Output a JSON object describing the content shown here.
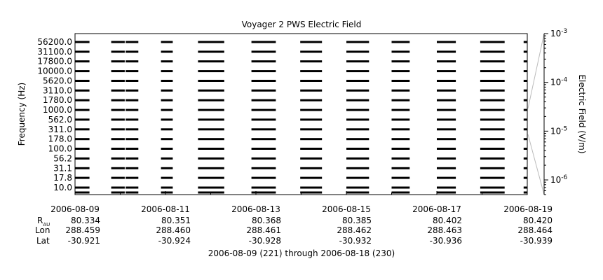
{
  "chart_data": {
    "type": "heatmap",
    "title": "Voyager 2 PWS Electric Field",
    "ylabel": "Frequency (Hz)",
    "colorbar_label": "Electric Field (V/m)",
    "xrange_days": [
      0,
      10
    ],
    "colorbar_range": [
      5e-07,
      0.001
    ],
    "y_ticks": [
      "56200.0",
      "31100.0",
      "17800.0",
      "10000.0",
      "5620.0",
      "3110.0",
      "1780.0",
      "1000.0",
      "562.0",
      "311.0",
      "178.0",
      "100.0",
      "56.2",
      "31.1",
      "17.8",
      "10.0"
    ],
    "x_ticks": [
      {
        "day": 0,
        "label": "2006-08-09"
      },
      {
        "day": 2,
        "label": "2006-08-11"
      },
      {
        "day": 4,
        "label": "2006-08-13"
      },
      {
        "day": 6,
        "label": "2006-08-15"
      },
      {
        "day": 8,
        "label": "2006-08-17"
      },
      {
        "day": 10,
        "label": "2006-08-19"
      }
    ],
    "ephemeris_row_labels": {
      "r": "R",
      "r_sub": "AU",
      "lon": "Lon",
      "lat": "Lat"
    },
    "ephemeris": [
      {
        "day": 0,
        "r": "80.334",
        "lon": "288.459",
        "lat": "-30.921"
      },
      {
        "day": 2,
        "r": "80.351",
        "lon": "288.460",
        "lat": "-30.924"
      },
      {
        "day": 4,
        "r": "80.368",
        "lon": "288.461",
        "lat": "-30.928"
      },
      {
        "day": 6,
        "r": "80.385",
        "lon": "288.462",
        "lat": "-30.932"
      },
      {
        "day": 8,
        "r": "80.402",
        "lon": "288.463",
        "lat": "-30.936"
      },
      {
        "day": 10,
        "r": "80.420",
        "lon": "288.464",
        "lat": "-30.939"
      }
    ],
    "colorbar_ticks": [
      {
        "value": 0.001,
        "base": "10",
        "exp": "-3"
      },
      {
        "value": 0.0001,
        "base": "10",
        "exp": "-4"
      },
      {
        "value": 1e-05,
        "base": "10",
        "exp": "-5"
      },
      {
        "value": 1e-06,
        "base": "10",
        "exp": "-6"
      }
    ],
    "data_segments_days": [
      [
        0.0,
        0.32
      ],
      [
        0.8,
        1.1
      ],
      [
        1.12,
        1.4
      ],
      [
        1.9,
        2.16
      ],
      [
        2.72,
        3.3
      ],
      [
        3.9,
        4.44
      ],
      [
        4.98,
        5.46
      ],
      [
        6.0,
        6.5
      ],
      [
        7.0,
        7.4
      ],
      [
        8.0,
        8.42
      ],
      [
        8.96,
        9.5
      ],
      [
        9.92,
        10.0
      ]
    ],
    "caption": "2006-08-09 (221) through 2006-08-18 (230)"
  }
}
